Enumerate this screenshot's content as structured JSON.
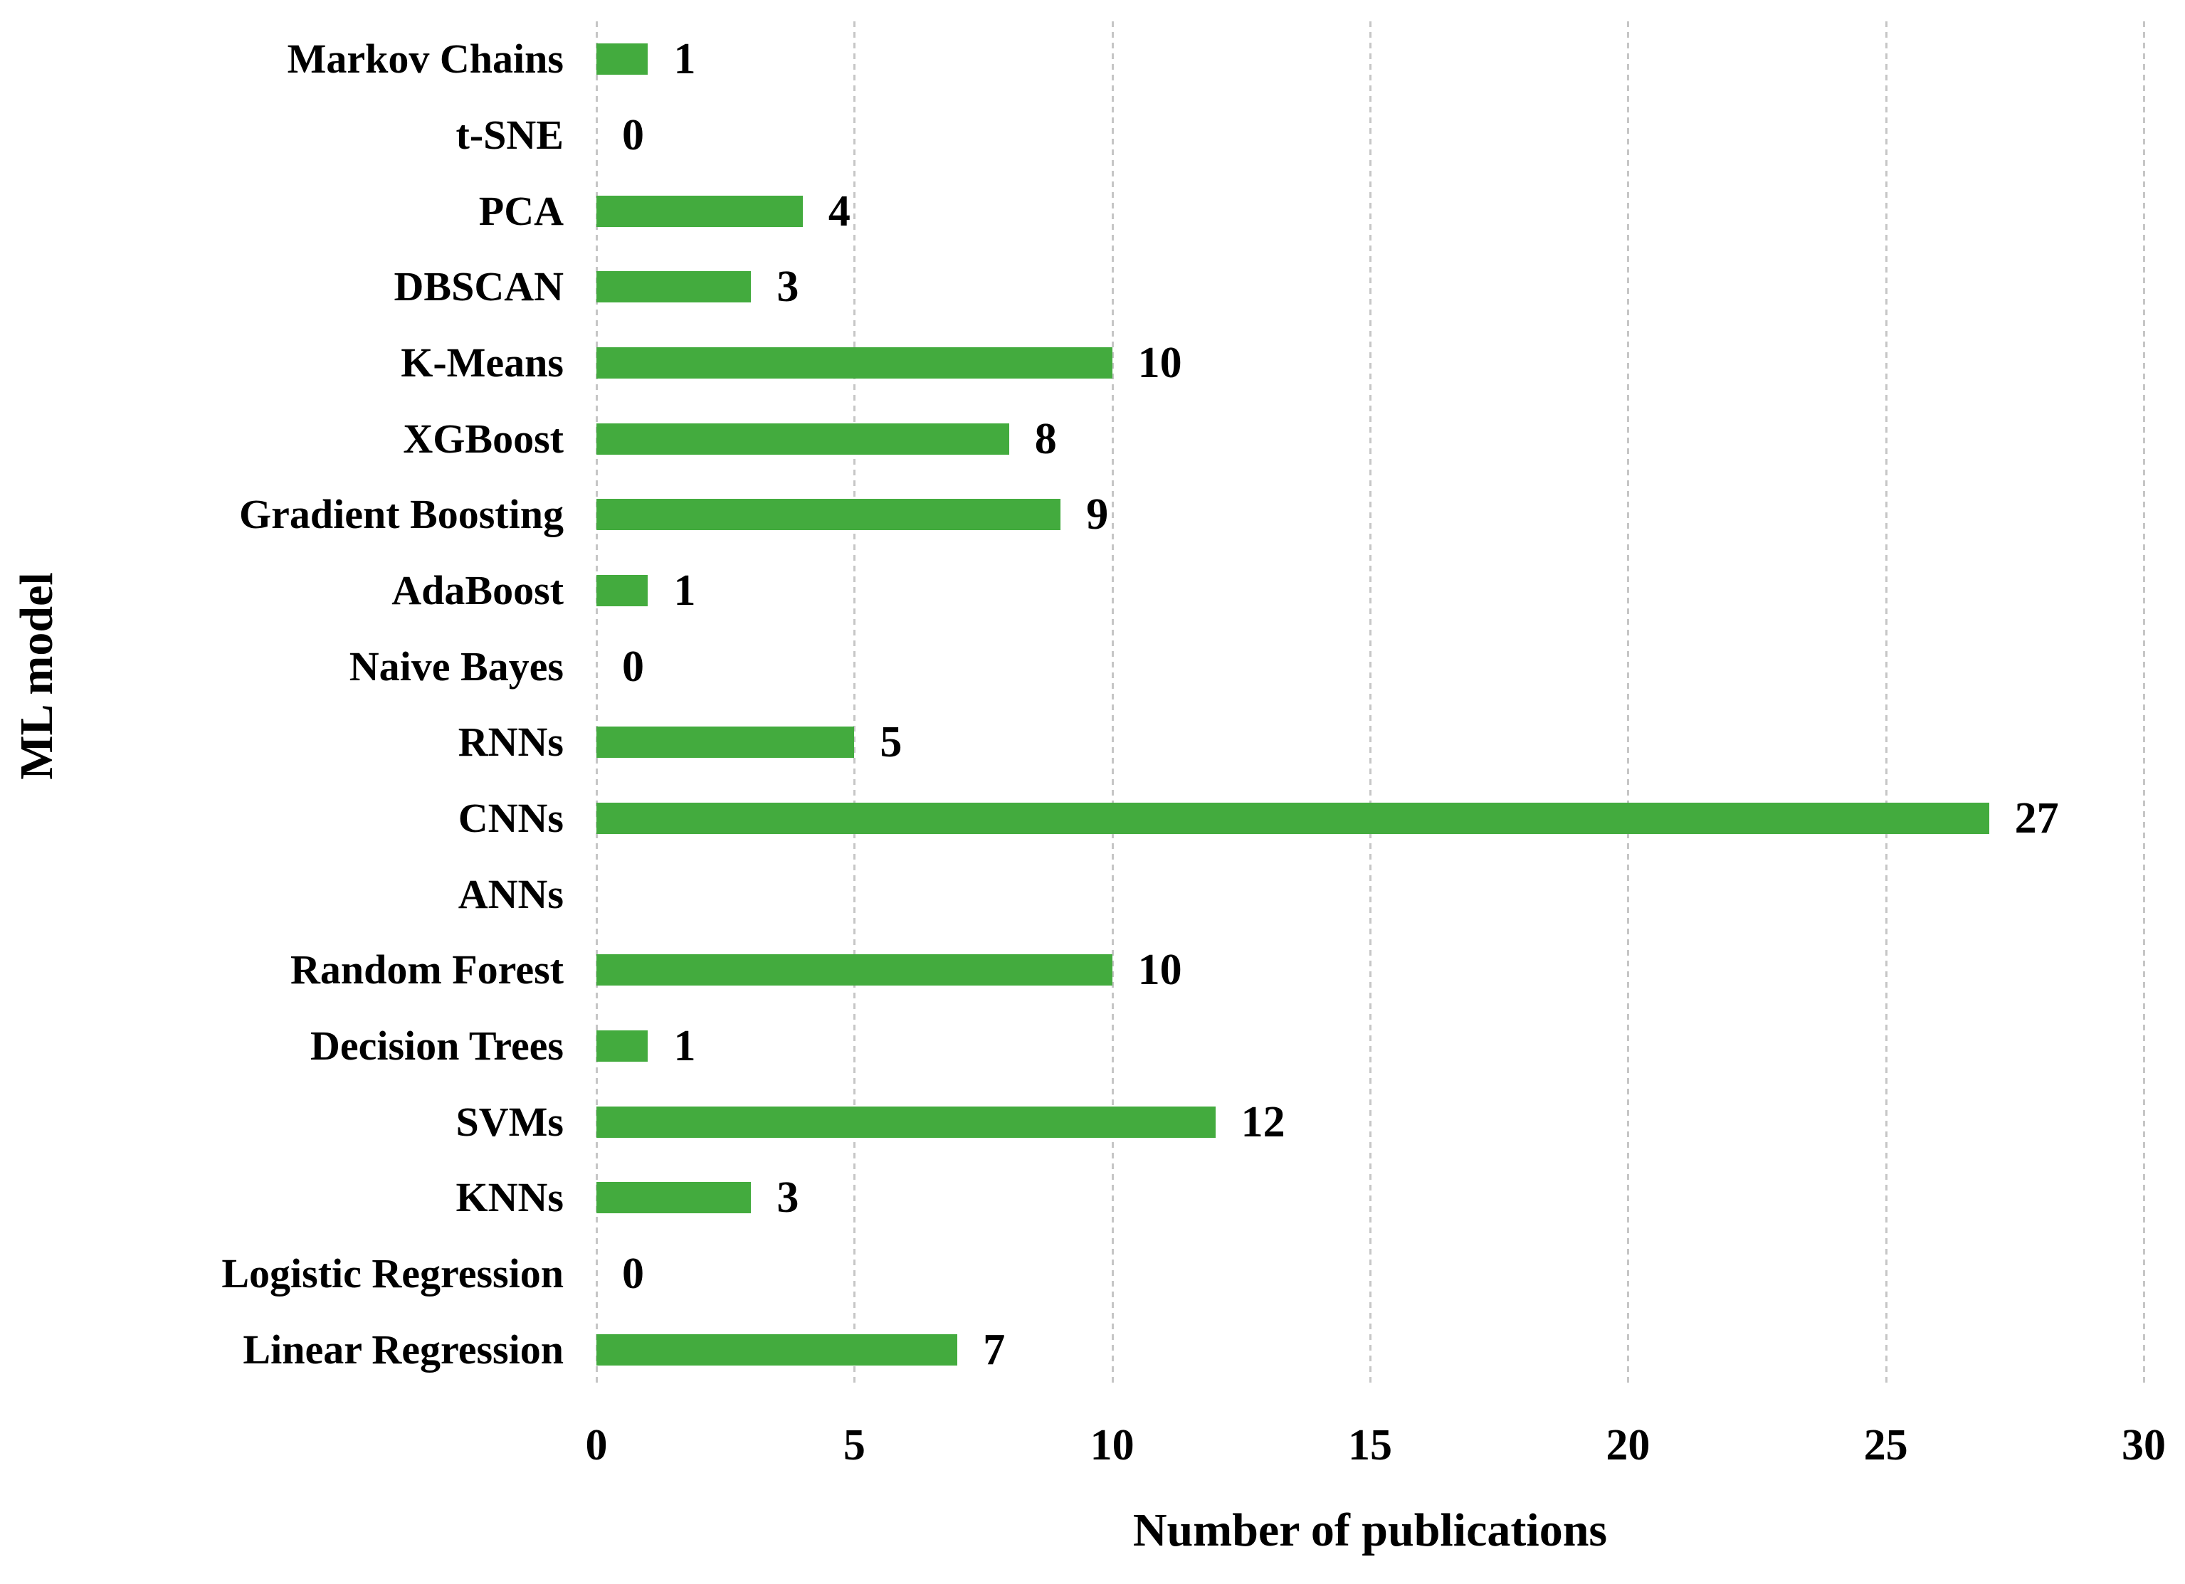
{
  "chart_data": {
    "type": "bar",
    "orientation": "horizontal",
    "title": "",
    "xlabel": "Number of publications",
    "ylabel": "ML model",
    "xlim": [
      0,
      30
    ],
    "xticks": [
      0,
      5,
      10,
      15,
      20,
      25,
      30
    ],
    "grid": "vertical dotted gridlines at every x tick, light gray",
    "legend": "none",
    "bar_color": "#43ab3e",
    "gridline_color": "#c6c6c6",
    "text_color": "#000000",
    "categories": [
      "Markov Chains",
      "t-SNE",
      "PCA",
      "DBSCAN",
      "K-Means",
      "XGBoost",
      "Gradient Boosting",
      "AdaBoost",
      "Naive Bayes",
      "RNNs",
      "CNNs",
      "ANNs",
      "Random Forest",
      "Decision Trees",
      "SVMs",
      "KNNs",
      "Logistic Regression",
      "Linear Regression"
    ],
    "values": [
      1,
      0,
      4,
      3,
      10,
      8,
      9,
      1,
      0,
      5,
      27,
      null,
      10,
      1,
      12,
      3,
      0,
      7
    ],
    "value_labels": [
      "1",
      "0",
      "4",
      "3",
      "10",
      "8",
      "9",
      "1",
      "0",
      "5",
      "27",
      "",
      "10",
      "1",
      "12",
      "3",
      "0",
      "7"
    ]
  }
}
